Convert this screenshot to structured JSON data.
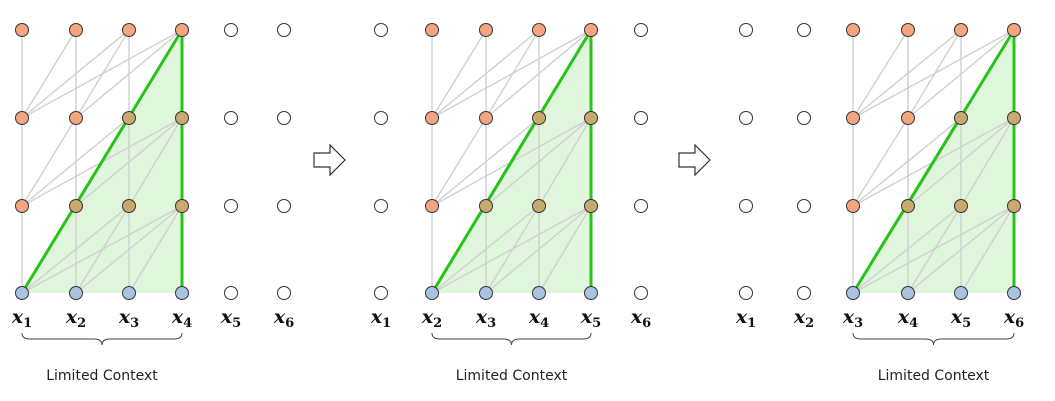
{
  "figure": {
    "panels": [
      {
        "tokens": [
          {
            "base": "x",
            "sub": "1"
          },
          {
            "base": "x",
            "sub": "2"
          },
          {
            "base": "x",
            "sub": "3"
          },
          {
            "base": "x",
            "sub": "4"
          },
          {
            "base": "x",
            "sub": "5"
          },
          {
            "base": "x",
            "sub": "6"
          }
        ],
        "window_start": 0,
        "window_size": 4,
        "context_label": "Limited Context"
      },
      {
        "tokens": [
          {
            "base": "x",
            "sub": "1"
          },
          {
            "base": "x",
            "sub": "2"
          },
          {
            "base": "x",
            "sub": "3"
          },
          {
            "base": "x",
            "sub": "4"
          },
          {
            "base": "x",
            "sub": "5"
          },
          {
            "base": "x",
            "sub": "6"
          }
        ],
        "window_start": 1,
        "window_size": 4,
        "context_label": "Limited Context"
      },
      {
        "tokens": [
          {
            "base": "x",
            "sub": "1"
          },
          {
            "base": "x",
            "sub": "2"
          },
          {
            "base": "x",
            "sub": "3"
          },
          {
            "base": "x",
            "sub": "4"
          },
          {
            "base": "x",
            "sub": "5"
          },
          {
            "base": "x",
            "sub": "6"
          }
        ],
        "window_start": 2,
        "window_size": 4,
        "context_label": "Limited Context"
      }
    ],
    "layers": 4,
    "colors": {
      "input_node": "#a9c4e0",
      "hidden_node": "#f4a77f",
      "highlight_node": "#c8aa6e",
      "inactive_node": "#ffffff",
      "node_stroke": "#333333",
      "edge": "#d0d0d0",
      "highlight_edge": "#27c21a",
      "shade": "#dff5dc",
      "arrow_fill": "#ffffff",
      "arrow_stroke": "#333333"
    }
  }
}
